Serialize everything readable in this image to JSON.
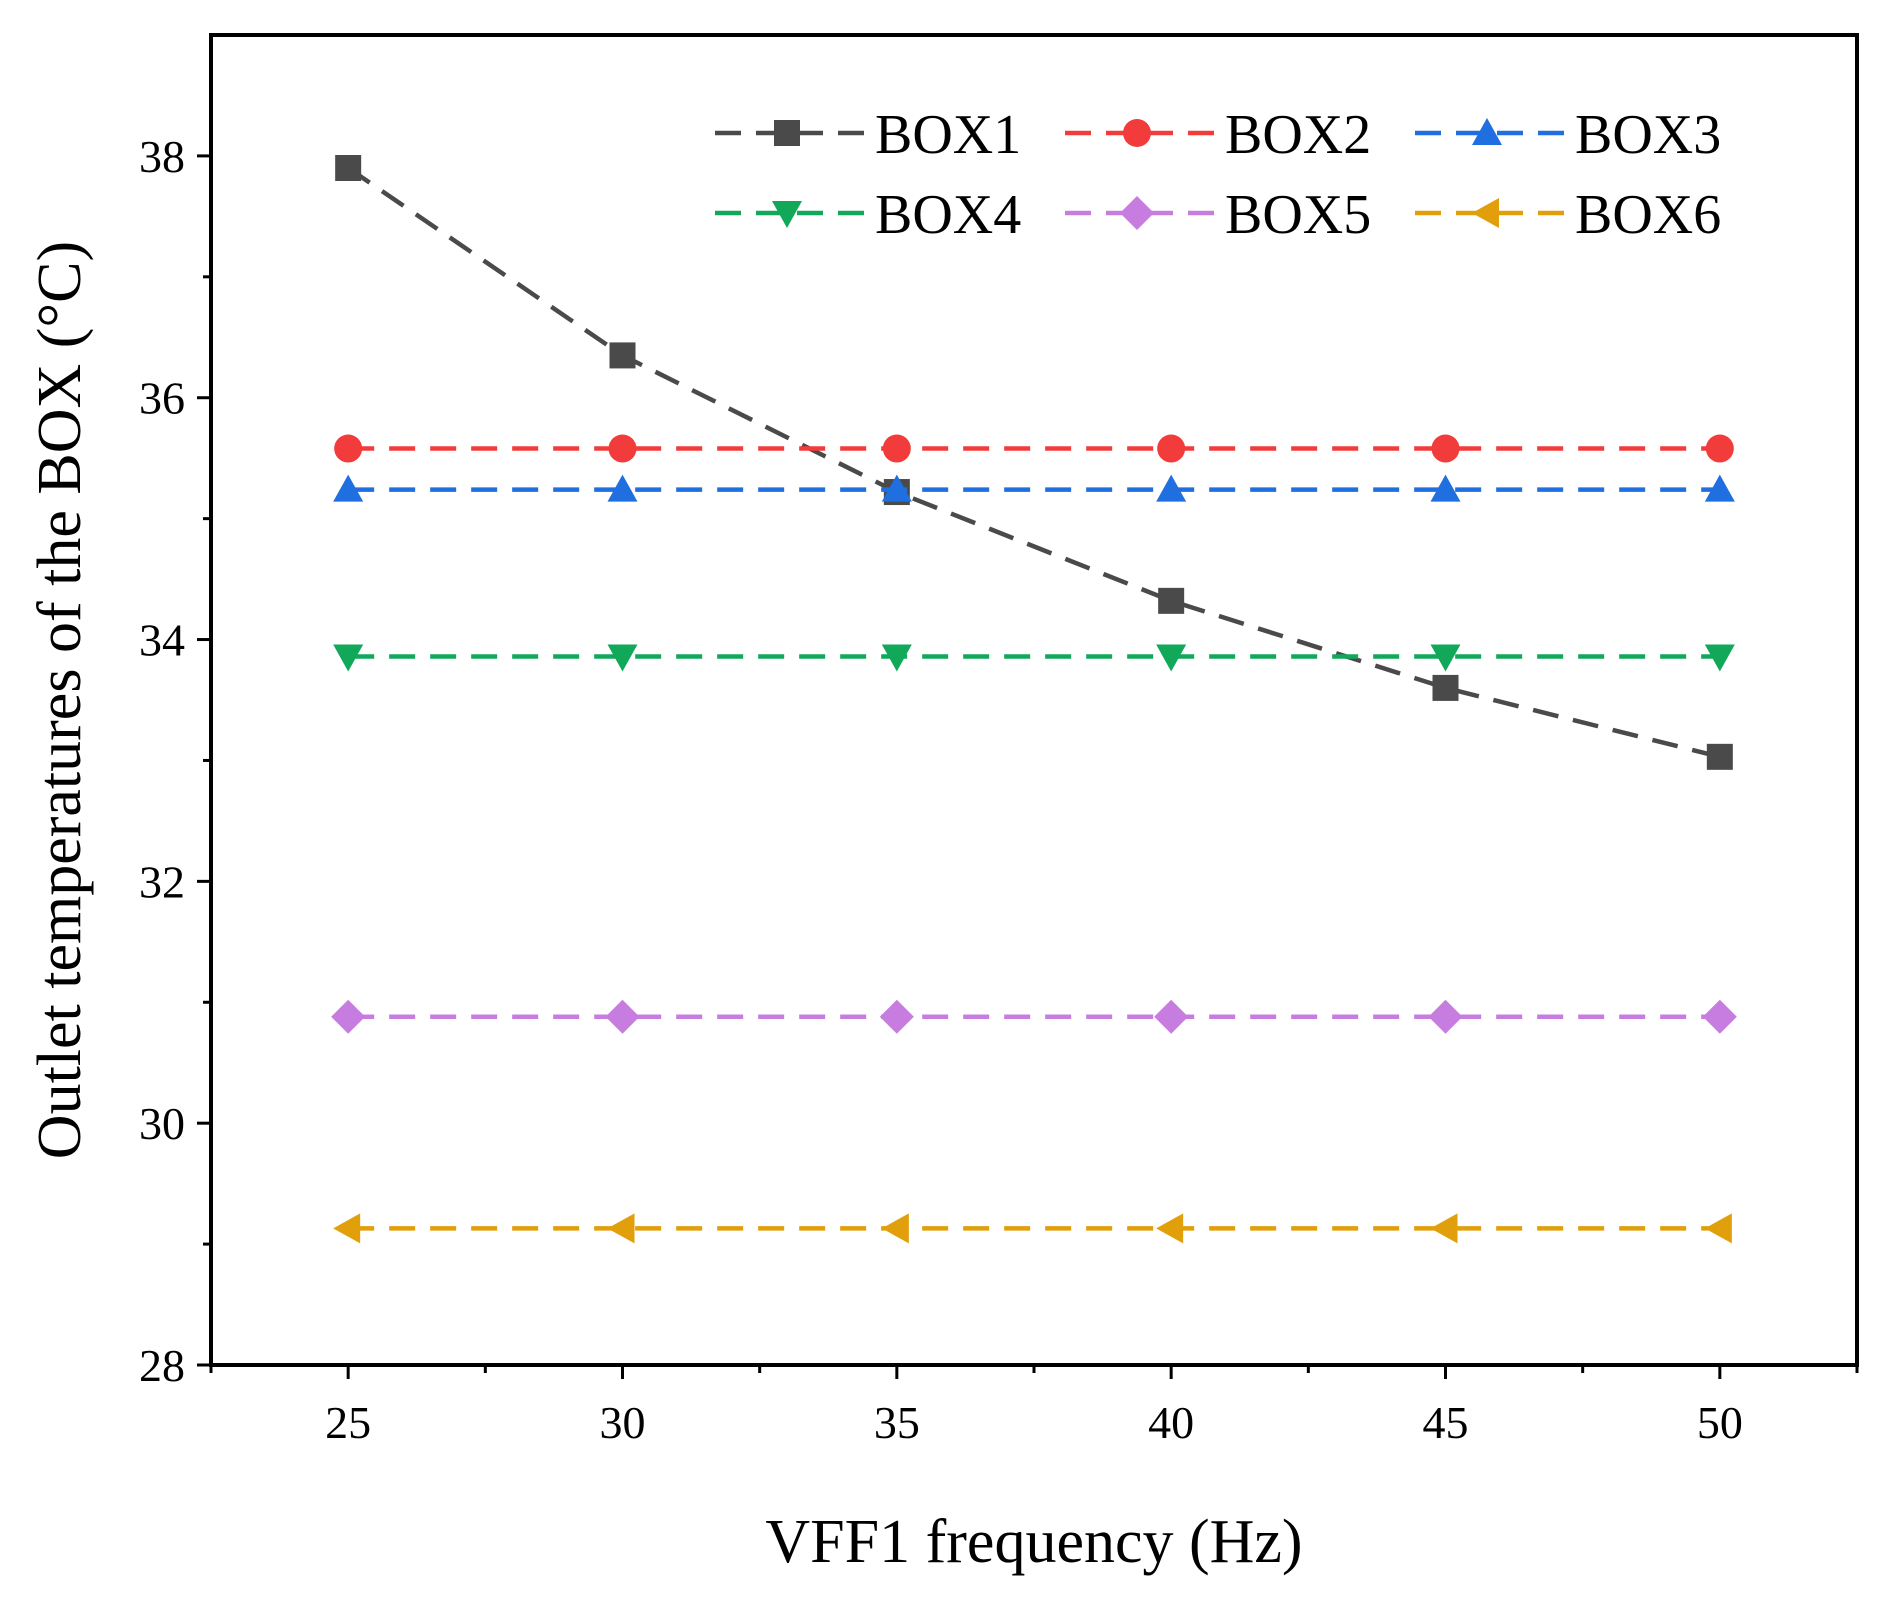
{
  "chart_data": {
    "type": "line",
    "title": "",
    "xlabel": "VFF1 frequency (Hz)",
    "ylabel": "Outlet temperatures of the BOX (°C)",
    "xlim": [
      22.5,
      52.5
    ],
    "ylim": [
      28,
      39
    ],
    "x": [
      25,
      30,
      35,
      40,
      45,
      50
    ],
    "xticks": [
      25,
      30,
      35,
      40,
      45,
      50
    ],
    "xtick_labels": [
      "25",
      "30",
      "35",
      "40",
      "45",
      "50"
    ],
    "yticks": [
      28,
      30,
      32,
      34,
      36,
      38
    ],
    "ytick_labels": [
      "28",
      "30",
      "32",
      "34",
      "36",
      "38"
    ],
    "grid": false,
    "legend_position": "top-right",
    "series": [
      {
        "name": "BOX1",
        "color": "#4a4a4a",
        "marker": "square",
        "values": [
          37.9,
          36.35,
          35.22,
          34.32,
          33.6,
          33.03
        ]
      },
      {
        "name": "BOX2",
        "color": "#f23b3b",
        "marker": "circle",
        "values": [
          35.58,
          35.58,
          35.58,
          35.58,
          35.58,
          35.58
        ]
      },
      {
        "name": "BOX3",
        "color": "#1f6fe0",
        "marker": "triangle-up",
        "values": [
          35.24,
          35.24,
          35.24,
          35.24,
          35.24,
          35.24
        ]
      },
      {
        "name": "BOX4",
        "color": "#12a85a",
        "marker": "triangle-down",
        "values": [
          33.86,
          33.86,
          33.86,
          33.86,
          33.86,
          33.86
        ]
      },
      {
        "name": "BOX5",
        "color": "#c77de0",
        "marker": "diamond",
        "values": [
          30.88,
          30.88,
          30.88,
          30.88,
          30.88,
          30.88
        ]
      },
      {
        "name": "BOX6",
        "color": "#e09f0b",
        "marker": "triangle-left",
        "values": [
          29.13,
          29.13,
          29.13,
          29.13,
          29.13,
          29.13
        ]
      }
    ]
  }
}
